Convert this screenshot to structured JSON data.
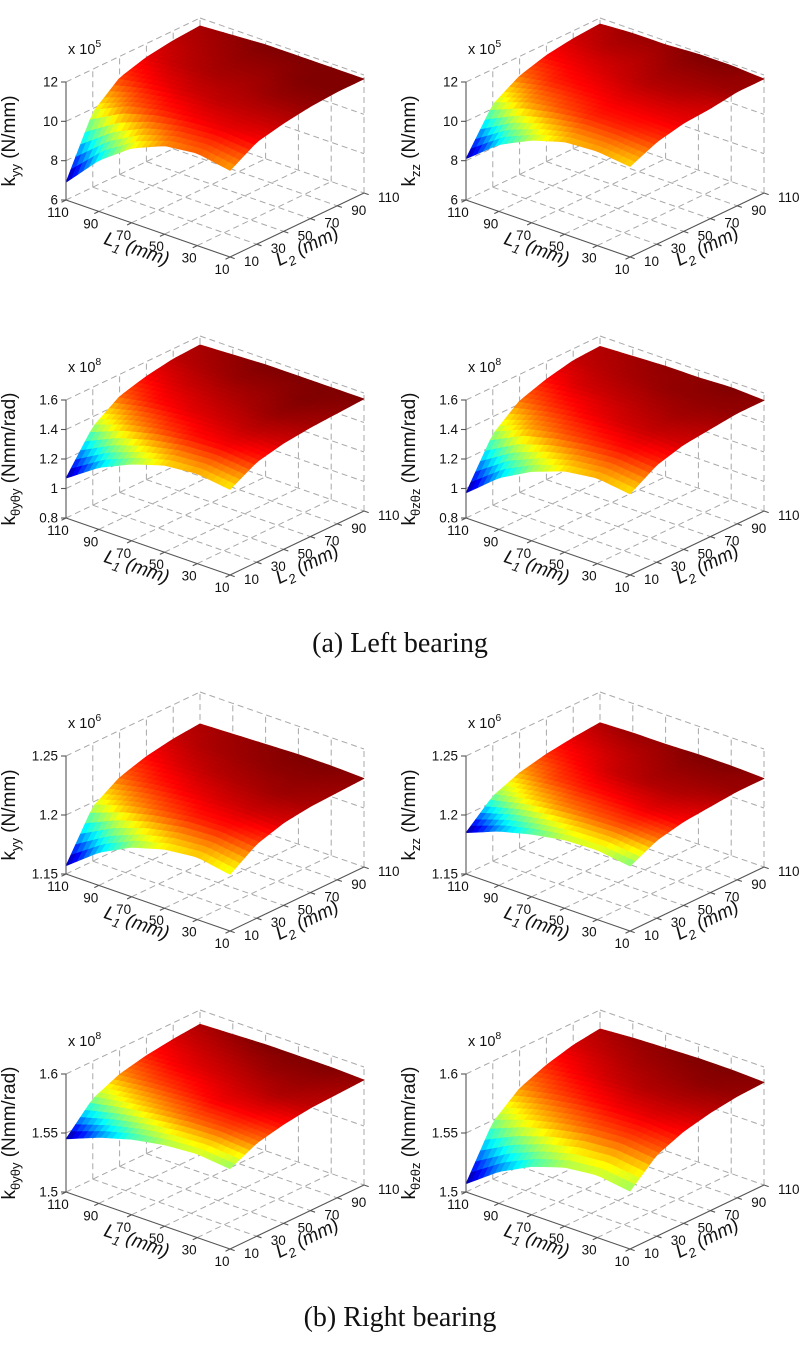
{
  "page": {
    "background": "#ffffff"
  },
  "sections": [
    {
      "caption": "(a) Left bearing"
    },
    {
      "caption": "(b) Right bearing"
    }
  ],
  "chart_data": [
    {
      "type": "surface3d",
      "section": "left-bearing",
      "colormap": "jet",
      "zlabel": {
        "sym": "k",
        "sub": "yy",
        "unit": " (N/mm)"
      },
      "scale_exponent": {
        "base": "x 10",
        "power": "5"
      },
      "zlim": [
        6,
        12
      ],
      "zticks": [
        6,
        8,
        10,
        12
      ],
      "xlabel": {
        "sym": "L",
        "sub": "1",
        "unit": " (mm)"
      },
      "xticks": [
        110,
        90,
        70,
        50,
        30,
        10
      ],
      "ylabel": {
        "sym": "L",
        "sub": "2",
        "unit": " (mm)"
      },
      "yticks": [
        10,
        30,
        50,
        70,
        90,
        110
      ],
      "grid_note": "rows = L1 110..10, cols = L2 10..110, values in 1e5 N/mm",
      "z_grid": [
        [
          6.9,
          9.8,
          10.9,
          11.3,
          11.5,
          11.6
        ],
        [
          8.6,
          10.6,
          11.2,
          11.5,
          11.6,
          11.7
        ],
        [
          9.8,
          11.0,
          11.4,
          11.6,
          11.7,
          11.8
        ],
        [
          10.5,
          11.2,
          11.5,
          11.6,
          11.7,
          11.8
        ],
        [
          10.7,
          11.3,
          11.5,
          11.7,
          11.8,
          11.8
        ],
        [
          10.4,
          11.2,
          11.5,
          11.7,
          11.8,
          11.8
        ]
      ]
    },
    {
      "type": "surface3d",
      "section": "left-bearing",
      "colormap": "jet",
      "zlabel": {
        "sym": "k",
        "sub": "zz",
        "unit": " (N/mm)"
      },
      "scale_exponent": {
        "base": "x 10",
        "power": "5"
      },
      "zlim": [
        6,
        12
      ],
      "zticks": [
        6,
        8,
        10,
        12
      ],
      "xlabel": {
        "sym": "L",
        "sub": "1",
        "unit": " (mm)"
      },
      "xticks": [
        110,
        90,
        70,
        50,
        30,
        10
      ],
      "ylabel": {
        "sym": "L",
        "sub": "2",
        "unit": " (mm)"
      },
      "yticks": [
        10,
        30,
        50,
        70,
        90,
        110
      ],
      "grid_note": "rows = L1 110..10, cols = L2 10..110, values in 1e5 N/mm",
      "z_grid": [
        [
          8.1,
          10.2,
          11.0,
          11.4,
          11.6,
          11.7
        ],
        [
          9.4,
          10.8,
          11.3,
          11.5,
          11.7,
          11.8
        ],
        [
          10.2,
          11.1,
          11.4,
          11.6,
          11.7,
          11.8
        ],
        [
          10.7,
          11.3,
          11.5,
          11.7,
          11.8,
          11.9
        ],
        [
          10.8,
          11.3,
          11.5,
          11.7,
          11.8,
          11.9
        ],
        [
          10.6,
          11.2,
          11.5,
          11.6,
          11.8,
          11.8
        ]
      ]
    },
    {
      "type": "surface3d",
      "section": "left-bearing",
      "colormap": "jet",
      "zlabel": {
        "sym": "k",
        "sub": "θyθy",
        "unit": " (Nmm/rad)"
      },
      "scale_exponent": {
        "base": "x 10",
        "power": "8"
      },
      "zlim": [
        0.8,
        1.6
      ],
      "zticks": [
        0.8,
        1,
        1.2,
        1.4,
        1.6
      ],
      "xlabel": {
        "sym": "L",
        "sub": "1",
        "unit": " (mm)"
      },
      "xticks": [
        110,
        90,
        70,
        50,
        30,
        10
      ],
      "ylabel": {
        "sym": "L",
        "sub": "2",
        "unit": " (mm)"
      },
      "yticks": [
        10,
        30,
        50,
        70,
        90,
        110
      ],
      "grid_note": "rows = L1 110..10, cols = L2 10..110, values in 1e8 Nmm/rad",
      "z_grid": [
        [
          1.07,
          1.33,
          1.45,
          1.5,
          1.53,
          1.54
        ],
        [
          1.22,
          1.41,
          1.49,
          1.52,
          1.54,
          1.55
        ],
        [
          1.32,
          1.46,
          1.51,
          1.53,
          1.55,
          1.56
        ],
        [
          1.39,
          1.49,
          1.52,
          1.54,
          1.55,
          1.56
        ],
        [
          1.41,
          1.5,
          1.53,
          1.55,
          1.56,
          1.56
        ],
        [
          1.38,
          1.48,
          1.52,
          1.54,
          1.55,
          1.56
        ]
      ]
    },
    {
      "type": "surface3d",
      "section": "left-bearing",
      "colormap": "jet",
      "zlabel": {
        "sym": "k",
        "sub": "θzθz",
        "unit": " (Nmm/rad)"
      },
      "scale_exponent": {
        "base": "x 10",
        "power": "8"
      },
      "zlim": [
        0.8,
        1.6
      ],
      "zticks": [
        0.8,
        1,
        1.2,
        1.4,
        1.6
      ],
      "xlabel": {
        "sym": "L",
        "sub": "1",
        "unit": " (mm)"
      },
      "xticks": [
        110,
        90,
        70,
        50,
        30,
        10
      ],
      "ylabel": {
        "sym": "L",
        "sub": "2",
        "unit": " (mm)"
      },
      "yticks": [
        10,
        30,
        50,
        70,
        90,
        110
      ],
      "grid_note": "rows = L1 110..10, cols = L2 10..110, values in 1e8 Nmm/rad",
      "z_grid": [
        [
          0.97,
          1.28,
          1.42,
          1.48,
          1.52,
          1.53
        ],
        [
          1.15,
          1.38,
          1.46,
          1.51,
          1.53,
          1.54
        ],
        [
          1.27,
          1.43,
          1.49,
          1.52,
          1.54,
          1.55
        ],
        [
          1.35,
          1.46,
          1.51,
          1.53,
          1.55,
          1.55
        ],
        [
          1.38,
          1.48,
          1.52,
          1.54,
          1.55,
          1.56
        ],
        [
          1.35,
          1.46,
          1.51,
          1.53,
          1.55,
          1.55
        ]
      ]
    },
    {
      "type": "surface3d",
      "section": "right-bearing",
      "colormap": "jet",
      "zlabel": {
        "sym": "k",
        "sub": "yy",
        "unit": " (N/mm)"
      },
      "scale_exponent": {
        "base": "x 10",
        "power": "6"
      },
      "zlim": [
        1.15,
        1.25
      ],
      "zticks": [
        1.15,
        1.2,
        1.25
      ],
      "xlabel": {
        "sym": "L",
        "sub": "1",
        "unit": " (mm)"
      },
      "xticks": [
        110,
        90,
        70,
        50,
        30,
        10
      ],
      "ylabel": {
        "sym": "L",
        "sub": "2",
        "unit": " (mm)"
      },
      "yticks": [
        10,
        30,
        50,
        70,
        90,
        110
      ],
      "grid_note": "rows = L1 110..10, cols = L2 10..110, values in 1e6 N/mm",
      "z_grid": [
        [
          1.157,
          1.196,
          1.21,
          1.217,
          1.221,
          1.223
        ],
        [
          1.178,
          1.205,
          1.215,
          1.22,
          1.223,
          1.224
        ],
        [
          1.192,
          1.211,
          1.218,
          1.222,
          1.224,
          1.225
        ],
        [
          1.2,
          1.215,
          1.22,
          1.223,
          1.225,
          1.226
        ],
        [
          1.203,
          1.216,
          1.221,
          1.224,
          1.225,
          1.226
        ],
        [
          1.198,
          1.213,
          1.22,
          1.223,
          1.224,
          1.225
        ]
      ]
    },
    {
      "type": "surface3d",
      "section": "right-bearing",
      "colormap": "jet",
      "zlabel": {
        "sym": "k",
        "sub": "zz",
        "unit": " (N/mm)"
      },
      "scale_exponent": {
        "base": "x 10",
        "power": "6"
      },
      "zlim": [
        1.15,
        1.25
      ],
      "zticks": [
        1.15,
        1.2,
        1.25
      ],
      "xlabel": {
        "sym": "L",
        "sub": "1",
        "unit": " (mm)"
      },
      "xticks": [
        110,
        90,
        70,
        50,
        30,
        10
      ],
      "ylabel": {
        "sym": "L",
        "sub": "2",
        "unit": " (mm)"
      },
      "yticks": [
        10,
        30,
        50,
        70,
        90,
        110
      ],
      "grid_note": "rows = L1 110..10, cols = L2 10..110, values in 1e6 N/mm",
      "z_grid": [
        [
          1.185,
          1.205,
          1.214,
          1.219,
          1.222,
          1.224
        ],
        [
          1.196,
          1.211,
          1.218,
          1.221,
          1.223,
          1.225
        ],
        [
          1.203,
          1.215,
          1.22,
          1.223,
          1.224,
          1.225
        ],
        [
          1.208,
          1.217,
          1.221,
          1.224,
          1.225,
          1.226
        ],
        [
          1.209,
          1.218,
          1.222,
          1.224,
          1.225,
          1.226
        ],
        [
          1.205,
          1.216,
          1.221,
          1.223,
          1.225,
          1.225
        ]
      ]
    },
    {
      "type": "surface3d",
      "section": "right-bearing",
      "colormap": "jet",
      "zlabel": {
        "sym": "k",
        "sub": "θyθy",
        "unit": " (Nmm/rad)"
      },
      "scale_exponent": {
        "base": "x 10",
        "power": "8"
      },
      "zlim": [
        1.5,
        1.6
      ],
      "zticks": [
        1.5,
        1.55,
        1.6
      ],
      "xlabel": {
        "sym": "L",
        "sub": "1",
        "unit": " (mm)"
      },
      "xticks": [
        110,
        90,
        70,
        50,
        30,
        10
      ],
      "ylabel": {
        "sym": "L",
        "sub": "2",
        "unit": " (mm)"
      },
      "yticks": [
        10,
        30,
        50,
        70,
        90,
        110
      ],
      "grid_note": "rows = L1 110..10, cols = L2 10..110, values in 1e8 Nmm/rad",
      "z_grid": [
        [
          1.545,
          1.568,
          1.578,
          1.583,
          1.586,
          1.588
        ],
        [
          1.556,
          1.573,
          1.581,
          1.585,
          1.587,
          1.589
        ],
        [
          1.564,
          1.577,
          1.583,
          1.586,
          1.588,
          1.59
        ],
        [
          1.569,
          1.58,
          1.585,
          1.587,
          1.589,
          1.59
        ],
        [
          1.571,
          1.581,
          1.585,
          1.588,
          1.589,
          1.59
        ],
        [
          1.568,
          1.579,
          1.584,
          1.587,
          1.588,
          1.589
        ]
      ]
    },
    {
      "type": "surface3d",
      "section": "right-bearing",
      "colormap": "jet",
      "zlabel": {
        "sym": "k",
        "sub": "θzθz",
        "unit": " (Nmm/rad)"
      },
      "scale_exponent": {
        "base": "x 10",
        "power": "8"
      },
      "zlim": [
        1.5,
        1.6
      ],
      "zticks": [
        1.5,
        1.55,
        1.6
      ],
      "xlabel": {
        "sym": "L",
        "sub": "1",
        "unit": " (mm)"
      },
      "xticks": [
        110,
        90,
        70,
        50,
        30,
        10
      ],
      "ylabel": {
        "sym": "L",
        "sub": "2",
        "unit": " (mm)"
      },
      "yticks": [
        10,
        30,
        50,
        70,
        90,
        110
      ],
      "grid_note": "rows = L1 110..10, cols = L2 10..110, values in 1e8 Nmm/rad",
      "z_grid": [
        [
          1.507,
          1.548,
          1.566,
          1.575,
          1.581,
          1.584
        ],
        [
          1.527,
          1.558,
          1.572,
          1.579,
          1.583,
          1.586
        ],
        [
          1.541,
          1.565,
          1.576,
          1.582,
          1.585,
          1.587
        ],
        [
          1.55,
          1.57,
          1.579,
          1.584,
          1.586,
          1.588
        ],
        [
          1.553,
          1.572,
          1.58,
          1.584,
          1.587,
          1.588
        ],
        [
          1.549,
          1.569,
          1.578,
          1.583,
          1.586,
          1.587
        ]
      ]
    }
  ]
}
